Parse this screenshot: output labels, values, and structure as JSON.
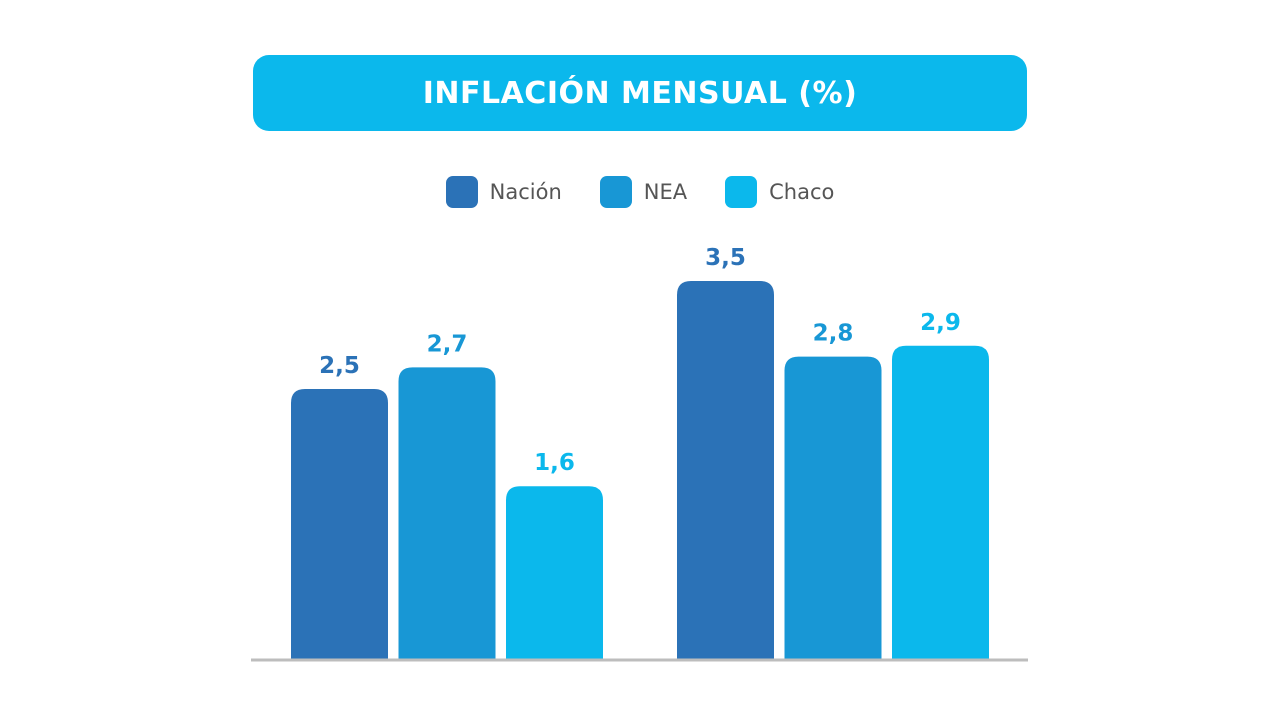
{
  "title": "INFLACIÓN MENSUAL (%)",
  "colors": {
    "banner": "#0bb8ec",
    "axis": "#bdbdbd",
    "series": [
      "#2b72b7",
      "#1897d5",
      "#0bb8ec"
    ]
  },
  "chart_data": {
    "type": "bar",
    "title": "INFLACIÓN MENSUAL (%)",
    "categories": [
      "",
      ""
    ],
    "series": [
      {
        "name": "Nación",
        "values": [
          2.5,
          3.5
        ],
        "labels": [
          "2,5",
          "3,5"
        ]
      },
      {
        "name": "NEA",
        "values": [
          2.7,
          2.8
        ],
        "labels": [
          "2,7",
          "2,8"
        ]
      },
      {
        "name": "Chaco",
        "values": [
          1.6,
          2.9
        ],
        "labels": [
          "1,6",
          "2,9"
        ]
      }
    ],
    "ylim": [
      0,
      3.5
    ],
    "grid": false,
    "legend": "top-center",
    "xlabel": "",
    "ylabel": ""
  }
}
